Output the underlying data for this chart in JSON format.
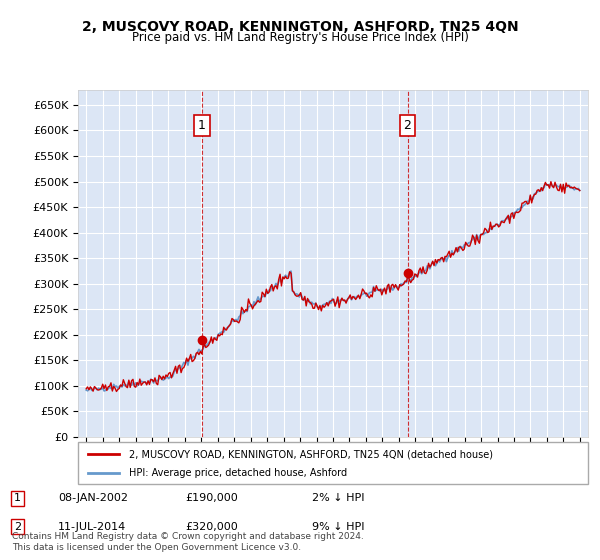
{
  "title": "2, MUSCOVY ROAD, KENNINGTON, ASHFORD, TN25 4QN",
  "subtitle": "Price paid vs. HM Land Registry's House Price Index (HPI)",
  "background_color": "#dce6f5",
  "plot_bg_color": "#dce6f5",
  "hpi_color": "#6699cc",
  "price_color": "#cc0000",
  "marker_color": "#cc0000",
  "annotation_box_color": "#cc0000",
  "dashed_line_color": "#cc0000",
  "ylim_min": 0,
  "ylim_max": 680000,
  "yticks": [
    0,
    50000,
    100000,
    150000,
    200000,
    250000,
    300000,
    350000,
    400000,
    450000,
    500000,
    550000,
    600000,
    650000
  ],
  "xlim_start": 1994.5,
  "xlim_end": 2025.5,
  "sale1_x": 2002.03,
  "sale1_y": 190000,
  "sale1_label": "1",
  "sale2_x": 2014.53,
  "sale2_y": 320000,
  "sale2_label": "2",
  "legend_line1": "2, MUSCOVY ROAD, KENNINGTON, ASHFORD, TN25 4QN (detached house)",
  "legend_line2": "HPI: Average price, detached house, Ashford",
  "ann1_date": "08-JAN-2002",
  "ann1_price": "£190,000",
  "ann1_hpi": "2% ↓ HPI",
  "ann2_date": "11-JUL-2014",
  "ann2_price": "£320,000",
  "ann2_hpi": "9% ↓ HPI",
  "footer": "Contains HM Land Registry data © Crown copyright and database right 2024.\nThis data is licensed under the Open Government Licence v3.0."
}
